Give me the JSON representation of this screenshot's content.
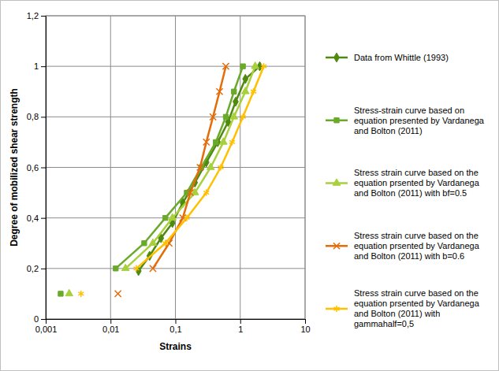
{
  "chart_data": {
    "type": "line",
    "x_label": "Strains",
    "y_label": "Degree of mobilized shear strength",
    "log": "x",
    "grid": true,
    "legend": "right",
    "xlim": [
      0.001,
      10
    ],
    "xticks": [
      {
        "value": 0.001,
        "label": "0,001"
      },
      {
        "value": 0.01,
        "label": "0,01"
      },
      {
        "value": 0.1,
        "label": "0,1"
      },
      1,
      10
    ],
    "ylim": [
      0,
      1.2
    ],
    "yticks": [
      0,
      {
        "value": 0.2,
        "label": "0,2"
      },
      {
        "value": 0.4,
        "label": "0,4"
      },
      {
        "value": 0.6,
        "label": "0,6"
      },
      {
        "value": 0.8,
        "label": "0,8"
      },
      1,
      {
        "value": 1.2,
        "label": "1,2"
      }
    ],
    "series": [
      {
        "name": "Data from Whittle (1993)",
        "color": "#4f8a10",
        "marker": "diamond",
        "x": [
          0.027,
          0.04,
          0.06,
          0.09,
          0.13,
          0.2,
          0.3,
          0.45,
          0.65,
          0.85,
          1.2,
          2.0
        ],
        "values": [
          0.19,
          0.25,
          0.32,
          0.38,
          0.46,
          0.54,
          0.62,
          0.7,
          0.78,
          0.86,
          0.95,
          1.0
        ]
      },
      {
        "name": "Stress-strain curve based on equation presented by Vardanega and Bolton (2011)",
        "color": "#6aaa2a",
        "marker": "square",
        "x": [
          0.0017,
          null,
          0.012,
          0.033,
          0.07,
          0.15,
          0.25,
          0.42,
          0.6,
          0.8,
          1.1
        ],
        "values": [
          0.1,
          null,
          0.2,
          0.3,
          0.4,
          0.5,
          0.6,
          0.7,
          0.8,
          0.9,
          1.0
        ]
      },
      {
        "name": "Stress strain curve based on the equation prsented by Vardanega and Bolton (2011) with bf=0.5",
        "color": "#a8d03c",
        "marker": "triangle",
        "x": [
          0.0023,
          null,
          0.017,
          0.045,
          0.09,
          0.2,
          0.35,
          0.55,
          0.8,
          1.2,
          1.7
        ],
        "values": [
          0.1,
          null,
          0.2,
          0.3,
          0.4,
          0.5,
          0.6,
          0.7,
          0.8,
          0.9,
          1.0
        ]
      },
      {
        "name": "Stress strain curve based on the equation prsented by Vardanega and Bolton (2011) with b=0.6",
        "color": "#e46c0a",
        "marker": "x",
        "x": [
          0.013,
          null,
          0.045,
          0.08,
          0.13,
          0.17,
          0.24,
          0.3,
          0.38,
          0.48,
          0.6
        ],
        "values": [
          0.1,
          null,
          0.2,
          0.3,
          0.4,
          0.5,
          0.6,
          0.7,
          0.8,
          0.9,
          1.0
        ]
      },
      {
        "name": "Stress strain curve based on the equation prsented by Vardanega and Bolton (2011) with gammahalf=0,5",
        "color": "#ffc000",
        "marker": "asterisk",
        "x": [
          0.0035,
          null,
          0.025,
          0.07,
          0.15,
          0.3,
          0.5,
          0.75,
          1.1,
          1.6,
          2.3
        ],
        "values": [
          0.1,
          null,
          0.2,
          0.3,
          0.4,
          0.5,
          0.6,
          0.7,
          0.8,
          0.9,
          1.0
        ]
      }
    ]
  }
}
